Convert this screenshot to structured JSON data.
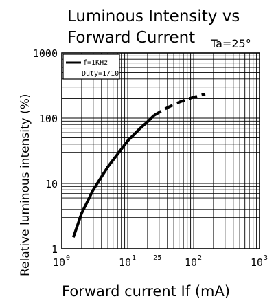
{
  "chart_data": {
    "type": "line",
    "title": "Luminous Intensity vs Forward Current",
    "title_lines": [
      "Luminous Intensity vs",
      "Forward Current"
    ],
    "condition_label": "Ta=25°",
    "xlabel": "Forward current If (mA)",
    "ylabel": "Relative luminous intensity (%)",
    "x_scale": "log",
    "y_scale": "log",
    "xlim": [
      1,
      1000
    ],
    "ylim": [
      1,
      1000
    ],
    "grid": true,
    "x_tick_labels": [
      {
        "value": 1,
        "base": "10",
        "exp": "0"
      },
      {
        "value": 10,
        "base": "10",
        "exp": "1"
      },
      {
        "value": 100,
        "base": "10",
        "exp": "2"
      },
      {
        "value": 1000,
        "base": "10",
        "exp": "3"
      }
    ],
    "x_annotation": {
      "value": 25,
      "label": "25"
    },
    "y_tick_labels": [
      {
        "value": 1,
        "label": "1"
      },
      {
        "value": 10,
        "label": "10"
      },
      {
        "value": 100,
        "label": "100"
      },
      {
        "value": 1000,
        "label": "1000"
      }
    ],
    "legend": {
      "position": "top-left",
      "entries": [
        "f=1KHz",
        "Duty=1/10"
      ]
    },
    "series": [
      {
        "style": "solid",
        "x": [
          1.5,
          2,
          3,
          5,
          7,
          10,
          15,
          20,
          25
        ],
        "y": [
          1.5,
          3.5,
          8,
          18,
          28,
          45,
          68,
          88,
          110
        ]
      },
      {
        "style": "dashed",
        "x": [
          25,
          40,
          60,
          80,
          100,
          150
        ],
        "y": [
          110,
          145,
          175,
          195,
          210,
          235
        ]
      }
    ]
  }
}
